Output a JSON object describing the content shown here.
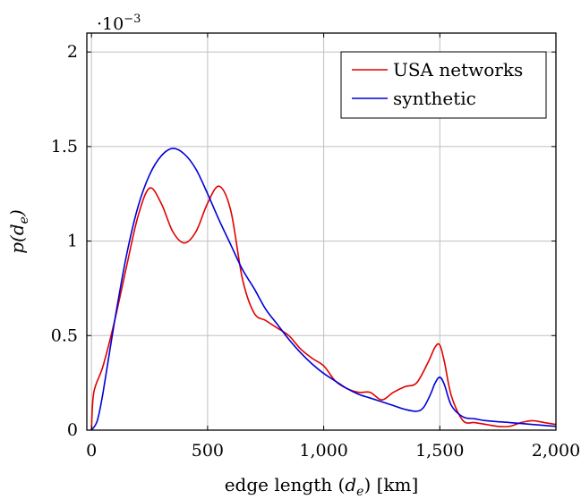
{
  "chart_data": {
    "type": "line",
    "xlabel": "edge length (d_e) [km]",
    "xlabel_parts": {
      "pre": "edge length (",
      "var": "d",
      "sub": "e",
      "post": ") [km]"
    },
    "ylabel_parts": {
      "pre": "p(",
      "var": "d",
      "sub": "e",
      "post": ")"
    },
    "y_multiplier": {
      "base": "·10",
      "exp": "−3"
    },
    "xlim": [
      -20,
      2000
    ],
    "ylim": [
      0,
      2.1
    ],
    "x_ticks": [
      0,
      500,
      1000,
      1500,
      2000
    ],
    "x_tick_labels": [
      "0",
      "500",
      "1,000",
      "1,500",
      "2,000"
    ],
    "y_ticks": [
      0,
      0.5,
      1,
      1.5,
      2
    ],
    "y_tick_labels": [
      "0",
      "0.5",
      "1",
      "1.5",
      "2"
    ],
    "grid": true,
    "legend_position": "top-right",
    "series": [
      {
        "name": "USA networks",
        "color": "#e00000",
        "x": [
          0,
          10,
          50,
          100,
          150,
          200,
          250,
          300,
          350,
          400,
          450,
          500,
          550,
          600,
          650,
          700,
          750,
          800,
          850,
          900,
          950,
          1000,
          1050,
          1100,
          1150,
          1200,
          1250,
          1300,
          1350,
          1400,
          1450,
          1480,
          1500,
          1520,
          1550,
          1600,
          1650,
          1700,
          1750,
          1800,
          1850,
          1900,
          1950,
          2000
        ],
        "y": [
          0,
          0.2,
          0.34,
          0.58,
          0.86,
          1.13,
          1.28,
          1.2,
          1.05,
          0.99,
          1.05,
          1.2,
          1.29,
          1.16,
          0.8,
          0.62,
          0.58,
          0.54,
          0.5,
          0.43,
          0.38,
          0.34,
          0.26,
          0.22,
          0.2,
          0.2,
          0.16,
          0.2,
          0.23,
          0.25,
          0.36,
          0.44,
          0.45,
          0.36,
          0.18,
          0.05,
          0.04,
          0.03,
          0.02,
          0.02,
          0.04,
          0.05,
          0.04,
          0.03
        ]
      },
      {
        "name": "synthetic",
        "color": "#0000d8",
        "x": [
          0,
          25,
          50,
          100,
          150,
          200,
          250,
          300,
          350,
          400,
          450,
          500,
          550,
          600,
          650,
          700,
          750,
          800,
          850,
          900,
          950,
          1000,
          1050,
          1100,
          1150,
          1200,
          1250,
          1300,
          1350,
          1400,
          1430,
          1460,
          1480,
          1500,
          1520,
          1550,
          1600,
          1650,
          1700,
          1800,
          1900,
          2000
        ],
        "y": [
          0,
          0.05,
          0.2,
          0.58,
          0.92,
          1.18,
          1.35,
          1.45,
          1.49,
          1.46,
          1.38,
          1.25,
          1.11,
          0.98,
          0.85,
          0.75,
          0.64,
          0.56,
          0.48,
          0.41,
          0.35,
          0.3,
          0.26,
          0.22,
          0.19,
          0.17,
          0.15,
          0.13,
          0.11,
          0.1,
          0.12,
          0.19,
          0.25,
          0.28,
          0.24,
          0.13,
          0.07,
          0.06,
          0.05,
          0.04,
          0.03,
          0.02
        ]
      }
    ]
  }
}
